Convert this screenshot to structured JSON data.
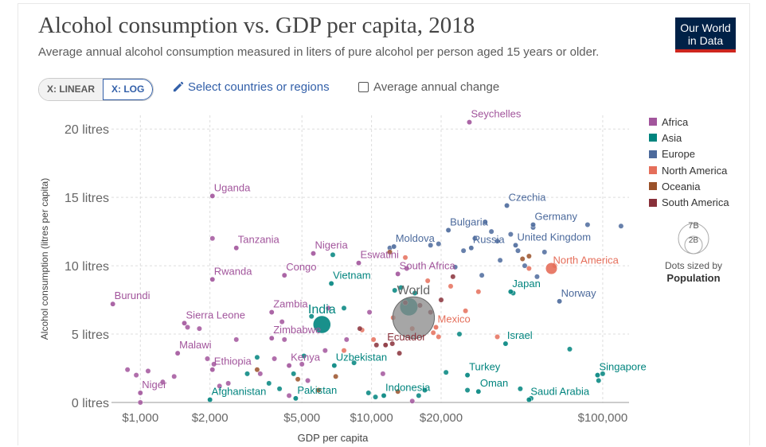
{
  "header": {
    "title": "Alcohol consumption vs. GDP per capita, 2018",
    "subtitle": "Average annual alcohol consumption measured in liters of pure alcohol per person aged 15 years or older.",
    "logo_line1": "Our World",
    "logo_line2": "in Data"
  },
  "controls": {
    "x_linear": "X: LINEAR",
    "x_log": "X: LOG",
    "select_label": "Select countries or regions",
    "avg_change_label": "Average annual change"
  },
  "legend": {
    "regions": [
      {
        "name": "Africa",
        "color": "#a2559c"
      },
      {
        "name": "Asia",
        "color": "#00847e"
      },
      {
        "name": "Europe",
        "color": "#4c6a9c"
      },
      {
        "name": "North America",
        "color": "#e56e5a"
      },
      {
        "name": "Oceania",
        "color": "#9a5129"
      },
      {
        "name": "South America",
        "color": "#883039"
      }
    ],
    "size_big": "7B",
    "size_small": "2B",
    "size_caption": "Dots sized by",
    "size_caption_bold": "Population"
  },
  "chart_data": {
    "type": "scatter",
    "xlabel": "GDP per capita",
    "ylabel": "Alcohol consumption (litres per capita)",
    "x_scale": "log",
    "xlim": [
      750,
      130000
    ],
    "ylim": [
      0,
      21
    ],
    "x_ticks": [
      {
        "value": 1000,
        "label": "$1,000"
      },
      {
        "value": 2000,
        "label": "$2,000"
      },
      {
        "value": 5000,
        "label": "$5,000"
      },
      {
        "value": 10000,
        "label": "$10,000"
      },
      {
        "value": 20000,
        "label": "$20,000"
      },
      {
        "value": 100000,
        "label": "$100,000"
      }
    ],
    "y_ticks": [
      {
        "value": 0,
        "label": "0 litres"
      },
      {
        "value": 5,
        "label": "5 litres"
      },
      {
        "value": 10,
        "label": "10 litres"
      },
      {
        "value": 15,
        "label": "15 litres"
      },
      {
        "value": 20,
        "label": "20 litres"
      }
    ],
    "grid": true,
    "legend_position": "right",
    "labeled_points": [
      {
        "name": "Seychelles",
        "region": "Africa",
        "x": 26500,
        "y": 20.5
      },
      {
        "name": "Uganda",
        "region": "Africa",
        "x": 2050,
        "y": 15.1
      },
      {
        "name": "Czechia",
        "region": "Europe",
        "x": 38500,
        "y": 14.4
      },
      {
        "name": "Bulgaria",
        "region": "Europe",
        "x": 21500,
        "y": 12.6
      },
      {
        "name": "Germany",
        "region": "Europe",
        "x": 50000,
        "y": 13.0
      },
      {
        "name": "Tanzania",
        "region": "Africa",
        "x": 2600,
        "y": 11.3
      },
      {
        "name": "Nigeria",
        "region": "Africa",
        "x": 5600,
        "y": 10.9
      },
      {
        "name": "Moldova",
        "region": "Europe",
        "x": 12500,
        "y": 11.4
      },
      {
        "name": "Russia",
        "region": "Europe",
        "x": 27000,
        "y": 11.3
      },
      {
        "name": "United Kingdom",
        "region": "Europe",
        "x": 42000,
        "y": 11.5
      },
      {
        "name": "Eswatini",
        "region": "Africa",
        "x": 8800,
        "y": 10.2
      },
      {
        "name": "Rwanda",
        "region": "Africa",
        "x": 2050,
        "y": 9.0
      },
      {
        "name": "Congo",
        "region": "Africa",
        "x": 4200,
        "y": 9.3
      },
      {
        "name": "South Africa",
        "region": "Africa",
        "x": 13000,
        "y": 9.4
      },
      {
        "name": "North America",
        "region": "North America",
        "x": 60000,
        "y": 9.8,
        "pop": 0.59
      },
      {
        "name": "Vietnam",
        "region": "Asia",
        "x": 6700,
        "y": 8.7
      },
      {
        "name": "Japan",
        "region": "Asia",
        "x": 40000,
        "y": 8.1
      },
      {
        "name": "Burundi",
        "region": "Africa",
        "x": 760,
        "y": 7.2
      },
      {
        "name": "World",
        "region": "World",
        "x": 15200,
        "y": 6.2,
        "pop": 7.6
      },
      {
        "name": "Norway",
        "region": "Europe",
        "x": 65000,
        "y": 7.4
      },
      {
        "name": "Zambia",
        "region": "Africa",
        "x": 3700,
        "y": 6.6
      },
      {
        "name": "India",
        "region": "Asia",
        "x": 6100,
        "y": 5.7,
        "pop": 1.35
      },
      {
        "name": "Sierra Leone",
        "region": "Africa",
        "x": 1550,
        "y": 5.8
      },
      {
        "name": "Mexico",
        "region": "North America",
        "x": 19000,
        "y": 5.5
      },
      {
        "name": "Zimbabwe",
        "region": "Africa",
        "x": 3700,
        "y": 4.7
      },
      {
        "name": "Ecuador",
        "region": "South America",
        "x": 11500,
        "y": 4.2
      },
      {
        "name": "Israel",
        "region": "Asia",
        "x": 38000,
        "y": 4.3
      },
      {
        "name": "Malawi",
        "region": "Africa",
        "x": 1450,
        "y": 3.6
      },
      {
        "name": "Kenya",
        "region": "Africa",
        "x": 4400,
        "y": 2.7
      },
      {
        "name": "Uzbekistan",
        "region": "Asia",
        "x": 6900,
        "y": 2.7
      },
      {
        "name": "Ethiopia",
        "region": "Africa",
        "x": 2050,
        "y": 2.4
      },
      {
        "name": "Turkey",
        "region": "Asia",
        "x": 26000,
        "y": 2.0
      },
      {
        "name": "Singapore",
        "region": "Asia",
        "x": 95000,
        "y": 2.0
      },
      {
        "name": "Niger",
        "region": "Africa",
        "x": 1000,
        "y": 0.7
      },
      {
        "name": "Indonesia",
        "region": "Asia",
        "x": 11300,
        "y": 0.5
      },
      {
        "name": "Oman",
        "region": "Asia",
        "x": 29000,
        "y": 0.8
      },
      {
        "name": "Pakistan",
        "region": "Asia",
        "x": 4700,
        "y": 0.3
      },
      {
        "name": "Afghanistan",
        "region": "Asia",
        "x": 2000,
        "y": 0.2
      },
      {
        "name": "Saudi Arabia",
        "region": "Asia",
        "x": 48000,
        "y": 0.2
      }
    ],
    "points": [
      {
        "region": "Africa",
        "x": 880,
        "y": 2.4
      },
      {
        "region": "Africa",
        "x": 960,
        "y": 2.0
      },
      {
        "region": "Africa",
        "x": 1080,
        "y": 2.3
      },
      {
        "region": "Africa",
        "x": 1250,
        "y": 1.5
      },
      {
        "region": "Africa",
        "x": 1400,
        "y": 1.9
      },
      {
        "region": "Africa",
        "x": 1000,
        "y": 0.0
      },
      {
        "region": "Africa",
        "x": 1600,
        "y": 5.5
      },
      {
        "region": "Africa",
        "x": 1800,
        "y": 5.4
      },
      {
        "region": "Africa",
        "x": 1950,
        "y": 3.2
      },
      {
        "region": "Africa",
        "x": 2080,
        "y": 2.8
      },
      {
        "region": "Africa",
        "x": 2400,
        "y": 1.4
      },
      {
        "region": "Africa",
        "x": 2200,
        "y": 1.2
      },
      {
        "region": "Africa",
        "x": 2600,
        "y": 4.6
      },
      {
        "region": "Africa",
        "x": 2050,
        "y": 12.0
      },
      {
        "region": "Africa",
        "x": 3300,
        "y": 2.1
      },
      {
        "region": "Africa",
        "x": 3800,
        "y": 3.2
      },
      {
        "region": "Africa",
        "x": 4100,
        "y": 5.9
      },
      {
        "region": "Africa",
        "x": 4200,
        "y": 4.6
      },
      {
        "region": "Africa",
        "x": 4400,
        "y": 0.5
      },
      {
        "region": "Africa",
        "x": 5000,
        "y": 2.8
      },
      {
        "region": "Africa",
        "x": 5300,
        "y": 1.6
      },
      {
        "region": "Africa",
        "x": 6300,
        "y": 3.8
      },
      {
        "region": "Africa",
        "x": 6500,
        "y": 6.9
      },
      {
        "region": "Africa",
        "x": 7800,
        "y": 4.6
      },
      {
        "region": "Africa",
        "x": 9800,
        "y": 6.6
      },
      {
        "region": "Africa",
        "x": 11200,
        "y": 2.1
      },
      {
        "region": "Africa",
        "x": 14200,
        "y": 9.8
      },
      {
        "region": "Africa",
        "x": 15000,
        "y": 0.1
      },
      {
        "region": "Asia",
        "x": 2900,
        "y": 2.1
      },
      {
        "region": "Asia",
        "x": 3200,
        "y": 3.3
      },
      {
        "region": "Asia",
        "x": 3600,
        "y": 1.4
      },
      {
        "region": "Asia",
        "x": 4000,
        "y": 1.0
      },
      {
        "region": "Asia",
        "x": 4600,
        "y": 2.1
      },
      {
        "region": "Asia",
        "x": 5100,
        "y": 3.4
      },
      {
        "region": "Asia",
        "x": 5500,
        "y": 6.3
      },
      {
        "region": "Asia",
        "x": 6800,
        "y": 10.8
      },
      {
        "region": "Asia",
        "x": 7600,
        "y": 6.9
      },
      {
        "region": "Asia",
        "x": 8400,
        "y": 2.9
      },
      {
        "region": "Asia",
        "x": 9700,
        "y": 0.7
      },
      {
        "region": "Asia",
        "x": 10400,
        "y": 0.4
      },
      {
        "region": "Asia",
        "x": 12600,
        "y": 8.2
      },
      {
        "region": "Asia",
        "x": 13400,
        "y": 8.4
      },
      {
        "region": "Asia",
        "x": 14500,
        "y": 7.0,
        "pop": 1.4
      },
      {
        "region": "Asia",
        "x": 15400,
        "y": 8.0
      },
      {
        "region": "Asia",
        "x": 16000,
        "y": 0.5
      },
      {
        "region": "Asia",
        "x": 17000,
        "y": 0.9
      },
      {
        "region": "Asia",
        "x": 21000,
        "y": 2.2
      },
      {
        "region": "Asia",
        "x": 24000,
        "y": 5.0
      },
      {
        "region": "Asia",
        "x": 26000,
        "y": 0.9
      },
      {
        "region": "Asia",
        "x": 44000,
        "y": 1.0
      },
      {
        "region": "Asia",
        "x": 49000,
        "y": 0.3
      },
      {
        "region": "Asia",
        "x": 72000,
        "y": 3.9
      },
      {
        "region": "Asia",
        "x": 96000,
        "y": 1.6
      },
      {
        "region": "Asia",
        "x": 100000,
        "y": 2.1
      },
      {
        "region": "Asia",
        "x": 41000,
        "y": 8.0
      },
      {
        "region": "Europe",
        "x": 12000,
        "y": 11.3
      },
      {
        "region": "Europe",
        "x": 18000,
        "y": 11.5
      },
      {
        "region": "Europe",
        "x": 19500,
        "y": 11.6
      },
      {
        "region": "Europe",
        "x": 23000,
        "y": 9.9
      },
      {
        "region": "Europe",
        "x": 25000,
        "y": 11.1
      },
      {
        "region": "Europe",
        "x": 28000,
        "y": 12.0
      },
      {
        "region": "Europe",
        "x": 31000,
        "y": 13.2
      },
      {
        "region": "Europe",
        "x": 33000,
        "y": 12.5
      },
      {
        "region": "Europe",
        "x": 35000,
        "y": 11.8
      },
      {
        "region": "Europe",
        "x": 36000,
        "y": 10.4
      },
      {
        "region": "Europe",
        "x": 40000,
        "y": 12.3
      },
      {
        "region": "Europe",
        "x": 43000,
        "y": 11.1
      },
      {
        "region": "Europe",
        "x": 46000,
        "y": 10.0
      },
      {
        "region": "Europe",
        "x": 50000,
        "y": 12.8
      },
      {
        "region": "Europe",
        "x": 52000,
        "y": 9.2
      },
      {
        "region": "Europe",
        "x": 56000,
        "y": 11.0
      },
      {
        "region": "Europe",
        "x": 86000,
        "y": 13.0
      },
      {
        "region": "Europe",
        "x": 120000,
        "y": 12.9
      },
      {
        "region": "Europe",
        "x": 30000,
        "y": 9.3
      },
      {
        "region": "North America",
        "x": 7600,
        "y": 3.8
      },
      {
        "region": "North America",
        "x": 9100,
        "y": 5.3
      },
      {
        "region": "North America",
        "x": 10200,
        "y": 4.6
      },
      {
        "region": "North America",
        "x": 12400,
        "y": 6.2
      },
      {
        "region": "North America",
        "x": 14000,
        "y": 10.6
      },
      {
        "region": "North America",
        "x": 15000,
        "y": 5.4
      },
      {
        "region": "North America",
        "x": 17500,
        "y": 8.9
      },
      {
        "region": "North America",
        "x": 18500,
        "y": 5.1
      },
      {
        "region": "North America",
        "x": 19500,
        "y": 4.8
      },
      {
        "region": "North America",
        "x": 22000,
        "y": 8.5
      },
      {
        "region": "North America",
        "x": 25500,
        "y": 6.7
      },
      {
        "region": "North America",
        "x": 29000,
        "y": 8.1
      },
      {
        "region": "North America",
        "x": 35000,
        "y": 4.8
      },
      {
        "region": "North America",
        "x": 48000,
        "y": 9.8
      },
      {
        "region": "North America",
        "x": 62000,
        "y": 10.0
      },
      {
        "region": "Oceania",
        "x": 3200,
        "y": 2.4
      },
      {
        "region": "Oceania",
        "x": 4800,
        "y": 1.7
      },
      {
        "region": "Oceania",
        "x": 5900,
        "y": 0.9
      },
      {
        "region": "Oceania",
        "x": 7000,
        "y": 1.9
      },
      {
        "region": "Oceania",
        "x": 12000,
        "y": 11.0
      },
      {
        "region": "Oceania",
        "x": 13000,
        "y": 0.8
      },
      {
        "region": "Oceania",
        "x": 45000,
        "y": 10.5
      },
      {
        "region": "Oceania",
        "x": 48000,
        "y": 10.7
      },
      {
        "region": "South America",
        "x": 8900,
        "y": 5.4
      },
      {
        "region": "South America",
        "x": 10500,
        "y": 4.2
      },
      {
        "region": "South America",
        "x": 12300,
        "y": 4.3
      },
      {
        "region": "South America",
        "x": 13200,
        "y": 3.6
      },
      {
        "region": "South America",
        "x": 14000,
        "y": 7.3
      },
      {
        "region": "South America",
        "x": 16200,
        "y": 7.1
      },
      {
        "region": "South America",
        "x": 18000,
        "y": 6.6
      },
      {
        "region": "South America",
        "x": 20000,
        "y": 7.5
      },
      {
        "region": "South America",
        "x": 22500,
        "y": 9.2
      }
    ]
  }
}
